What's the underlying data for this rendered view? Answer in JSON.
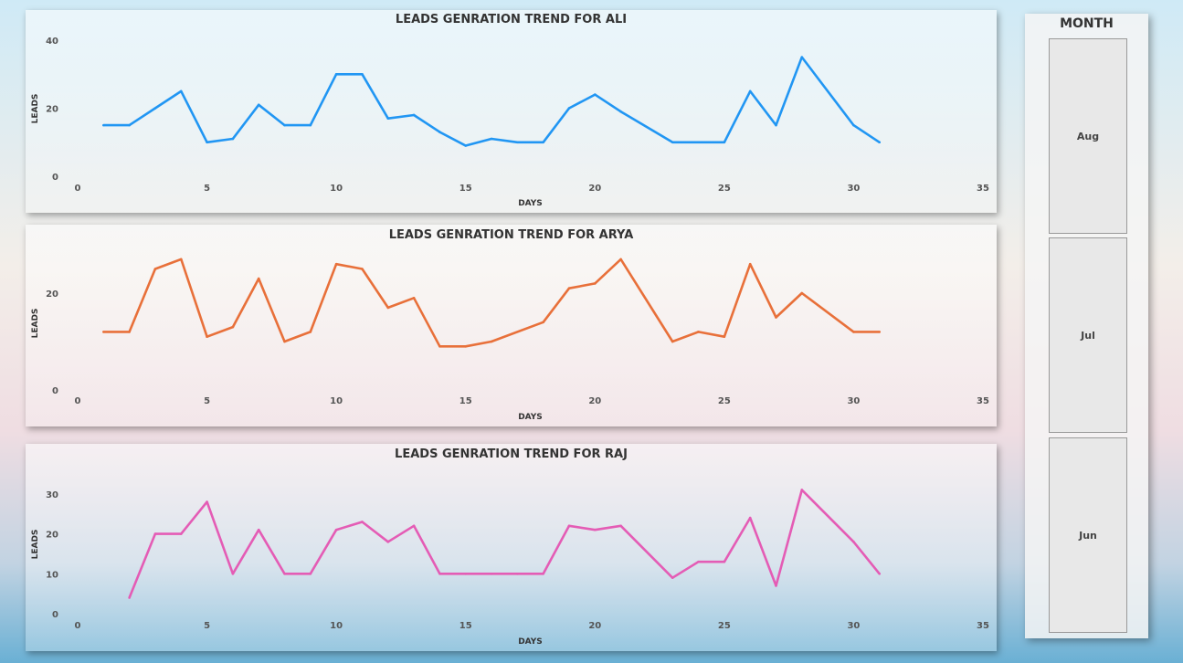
{
  "chart_data": [
    {
      "type": "line",
      "title": "LEADS GENRATION TREND FOR ALI",
      "xlabel": "DAYS",
      "ylabel": "LEADS",
      "color": "#2196f3",
      "xlim": [
        0,
        35
      ],
      "ylim": [
        0,
        40
      ],
      "xticks": [
        0,
        5,
        10,
        15,
        20,
        25,
        30,
        35
      ],
      "yticks": [
        0,
        20,
        40
      ],
      "x": [
        1,
        2,
        3,
        4,
        5,
        6,
        7,
        8,
        9,
        10,
        11,
        12,
        13,
        14,
        15,
        16,
        17,
        18,
        19,
        20,
        21,
        23,
        24,
        25,
        26,
        27,
        28,
        30,
        31
      ],
      "y": [
        15,
        15,
        20,
        25,
        10,
        11,
        21,
        15,
        15,
        30,
        30,
        17,
        18,
        13,
        9,
        11,
        10,
        10,
        20,
        24,
        19,
        10,
        10,
        10,
        25,
        15,
        35,
        15,
        10
      ]
    },
    {
      "type": "line",
      "title": "LEADS GENRATION TREND FOR ARYA",
      "xlabel": "DAYS",
      "ylabel": "LEADS",
      "color": "#e8703a",
      "xlim": [
        0,
        35
      ],
      "ylim": [
        0,
        30
      ],
      "xticks": [
        0,
        5,
        10,
        15,
        20,
        25,
        30,
        35
      ],
      "yticks": [
        0,
        20
      ],
      "x": [
        1,
        2,
        3,
        4,
        5,
        6,
        7,
        8,
        9,
        10,
        11,
        12,
        13,
        14,
        15,
        16,
        18,
        19,
        20,
        21,
        23,
        24,
        25,
        26,
        27,
        28,
        30,
        31
      ],
      "y": [
        12,
        12,
        25,
        27,
        11,
        13,
        23,
        10,
        12,
        26,
        25,
        17,
        19,
        9,
        9,
        10,
        14,
        21,
        22,
        27,
        10,
        12,
        11,
        26,
        15,
        20,
        12,
        12
      ]
    },
    {
      "type": "line",
      "title": "LEADS GENRATION TREND FOR RAJ",
      "xlabel": "DAYS",
      "ylabel": "LEADS",
      "color": "#e45cb5",
      "xlim": [
        0,
        35
      ],
      "ylim": [
        0,
        35
      ],
      "xticks": [
        0,
        5,
        10,
        15,
        20,
        25,
        30,
        35
      ],
      "yticks": [
        0,
        10,
        20,
        30
      ],
      "x": [
        2,
        3,
        4,
        5,
        6,
        7,
        8,
        9,
        10,
        11,
        12,
        13,
        14,
        15,
        16,
        17,
        18,
        19,
        20,
        21,
        23,
        24,
        25,
        26,
        27,
        28,
        30,
        31
      ],
      "y": [
        4,
        20,
        20,
        28,
        10,
        21,
        10,
        10,
        21,
        23,
        18,
        22,
        10,
        10,
        10,
        10,
        10,
        22,
        21,
        22,
        9,
        13,
        13,
        24,
        7,
        31,
        18,
        10
      ]
    }
  ],
  "slicer": {
    "title": "MONTH",
    "items": [
      "Aug",
      "Jul",
      "Jun"
    ]
  }
}
